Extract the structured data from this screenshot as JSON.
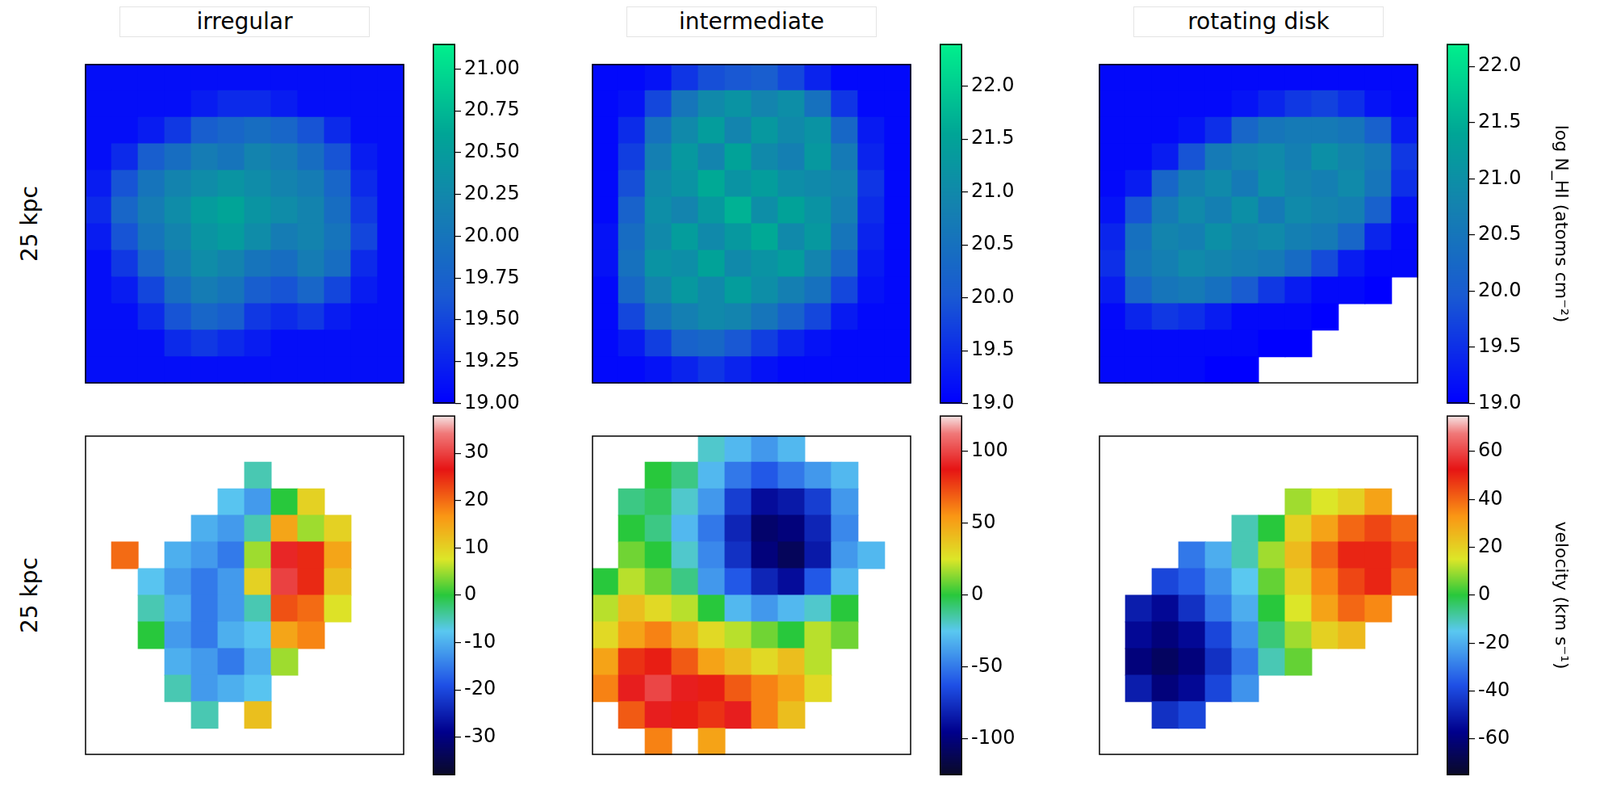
{
  "chart_data": [
    {
      "type": "heatmap",
      "title": "irregular",
      "ylabel": "25 kpc",
      "tick_labels": false,
      "cells": [
        [
          19.1,
          19.1,
          19.1,
          19.1,
          19.1,
          19.1,
          19.1,
          19.1,
          19.1,
          19.1,
          19.1,
          19.1
        ],
        [
          19.1,
          19.1,
          19.1,
          19.1,
          19.2,
          19.3,
          19.3,
          19.2,
          19.1,
          19.1,
          19.1,
          19.1
        ],
        [
          19.1,
          19.1,
          19.2,
          19.4,
          19.7,
          19.8,
          19.9,
          19.8,
          19.6,
          19.3,
          19.1,
          19.1
        ],
        [
          19.1,
          19.3,
          19.7,
          19.9,
          20.1,
          20.0,
          20.2,
          20.1,
          19.9,
          19.6,
          19.2,
          19.1
        ],
        [
          19.2,
          19.6,
          20.0,
          20.2,
          20.3,
          20.4,
          20.3,
          20.2,
          20.1,
          19.8,
          19.3,
          19.1
        ],
        [
          19.3,
          19.8,
          20.1,
          20.3,
          20.5,
          20.6,
          20.4,
          20.3,
          20.2,
          19.9,
          19.4,
          19.1
        ],
        [
          19.2,
          19.6,
          20.0,
          20.2,
          20.4,
          20.5,
          20.3,
          20.1,
          20.2,
          20.0,
          19.5,
          19.1
        ],
        [
          19.1,
          19.4,
          19.8,
          20.1,
          20.3,
          20.2,
          20.0,
          19.9,
          20.1,
          19.9,
          19.3,
          19.1
        ],
        [
          19.1,
          19.2,
          19.5,
          19.9,
          20.1,
          20.0,
          19.7,
          19.6,
          19.8,
          19.5,
          19.2,
          19.1
        ],
        [
          19.1,
          19.1,
          19.3,
          19.6,
          19.8,
          19.7,
          19.4,
          19.3,
          19.4,
          19.2,
          19.1,
          19.1
        ],
        [
          19.1,
          19.1,
          19.1,
          19.3,
          19.4,
          19.3,
          19.2,
          19.1,
          19.1,
          19.1,
          19.1,
          19.1
        ],
        [
          19.1,
          19.1,
          19.1,
          19.1,
          19.1,
          19.1,
          19.1,
          19.1,
          19.1,
          19.1,
          19.1,
          19.1
        ]
      ],
      "colorbar": {
        "lim": [
          19,
          21.15
        ],
        "ticks": [
          {
            "value": 19,
            "label": "19.00"
          },
          {
            "value": 19.25,
            "label": "19.25"
          },
          {
            "value": 19.5,
            "label": "19.50"
          },
          {
            "value": 19.75,
            "label": "19.75"
          },
          {
            "value": 20,
            "label": "20.00"
          },
          {
            "value": 20.25,
            "label": "20.25"
          },
          {
            "value": 20.5,
            "label": "20.50"
          },
          {
            "value": 20.75,
            "label": "20.75"
          },
          {
            "value": 21,
            "label": "21.00"
          }
        ]
      }
    },
    {
      "type": "heatmap",
      "title": "intermediate",
      "tick_labels": false,
      "cells": [
        [
          19.1,
          19.1,
          19.2,
          19.6,
          19.9,
          20.0,
          20.1,
          19.8,
          19.4,
          19.1,
          19.1,
          19.1
        ],
        [
          19.1,
          19.2,
          19.8,
          20.6,
          21.0,
          21.2,
          20.9,
          21.1,
          20.5,
          19.6,
          19.1,
          19.1
        ],
        [
          19.1,
          19.5,
          20.5,
          21.0,
          21.4,
          20.9,
          21.3,
          21.0,
          21.2,
          20.3,
          19.3,
          19.1
        ],
        [
          19.1,
          19.7,
          20.8,
          21.3,
          20.9,
          21.5,
          21.0,
          20.8,
          21.3,
          20.7,
          19.4,
          19.1
        ],
        [
          19.1,
          19.9,
          21.0,
          21.2,
          21.6,
          21.2,
          21.4,
          21.1,
          21.0,
          20.9,
          19.6,
          19.1
        ],
        [
          19.1,
          20.2,
          21.1,
          20.9,
          21.3,
          21.7,
          21.1,
          21.5,
          21.2,
          20.8,
          19.5,
          19.1
        ],
        [
          19.2,
          20.4,
          21.0,
          21.4,
          21.0,
          21.3,
          21.6,
          21.0,
          21.3,
          20.6,
          19.4,
          19.1
        ],
        [
          19.2,
          20.5,
          21.2,
          21.1,
          21.5,
          21.0,
          21.2,
          21.4,
          20.9,
          20.3,
          19.3,
          19.1
        ],
        [
          19.1,
          20.3,
          20.9,
          21.3,
          21.0,
          21.4,
          21.1,
          20.8,
          20.5,
          19.8,
          19.2,
          19.1
        ],
        [
          19.1,
          19.8,
          20.5,
          20.8,
          21.0,
          20.9,
          20.6,
          20.2,
          19.8,
          19.3,
          19.1,
          19.1
        ],
        [
          19.1,
          19.3,
          19.7,
          20.2,
          20.3,
          20.0,
          19.7,
          19.4,
          19.2,
          19.1,
          19.1,
          19.1
        ],
        [
          19.1,
          19.1,
          19.2,
          19.4,
          19.6,
          19.4,
          19.2,
          19.1,
          19.1,
          19.1,
          19.1,
          19.1
        ]
      ],
      "colorbar": {
        "lim": [
          19,
          22.4
        ],
        "ticks": [
          {
            "value": 19,
            "label": "19.0"
          },
          19.5,
          {
            "value": 20,
            "label": "20.0"
          },
          20.5,
          {
            "value": 21,
            "label": "21.0"
          },
          21.5,
          {
            "value": 22,
            "label": "22.0"
          }
        ]
      }
    },
    {
      "type": "heatmap",
      "title": "rotating disk",
      "tick_labels": false,
      "cells": [
        [
          19.1,
          19.1,
          19.1,
          19.1,
          19.1,
          19.1,
          19.1,
          19.1,
          19.1,
          19.1,
          19.1,
          19.1
        ],
        [
          19.1,
          19.1,
          19.1,
          19.1,
          19.1,
          19.2,
          19.4,
          19.6,
          19.7,
          19.5,
          19.2,
          19.1
        ],
        [
          19.1,
          19.1,
          19.1,
          19.2,
          19.5,
          20.2,
          20.5,
          20.6,
          20.6,
          20.5,
          20.1,
          19.3
        ],
        [
          19.1,
          19.1,
          19.3,
          19.9,
          20.6,
          20.8,
          20.9,
          20.7,
          21.0,
          20.8,
          20.6,
          19.6
        ],
        [
          19.1,
          19.3,
          20.2,
          20.7,
          20.9,
          20.6,
          21.0,
          20.8,
          20.7,
          20.9,
          20.5,
          19.5
        ],
        [
          19.2,
          19.9,
          20.6,
          20.9,
          20.7,
          21.0,
          20.6,
          20.9,
          20.8,
          20.7,
          20.1,
          19.2
        ],
        [
          19.4,
          20.4,
          20.8,
          20.7,
          21.0,
          20.8,
          20.9,
          20.7,
          20.6,
          20.2,
          19.4,
          19.1
        ],
        [
          19.5,
          20.5,
          20.7,
          20.9,
          20.8,
          20.7,
          20.6,
          20.3,
          19.8,
          19.3,
          19.1,
          19.1
        ],
        [
          19.3,
          20.2,
          20.5,
          20.6,
          20.4,
          20.0,
          19.6,
          19.3,
          19.1,
          19.1,
          19.0,
          null
        ],
        [
          19.1,
          19.4,
          19.6,
          19.5,
          19.3,
          19.1,
          19.1,
          19.1,
          19.0,
          null,
          null,
          null
        ],
        [
          19.1,
          19.1,
          19.1,
          19.1,
          19.1,
          19.1,
          19.0,
          19.0,
          null,
          null,
          null,
          null
        ],
        [
          19.1,
          19.1,
          19.1,
          19.1,
          19.0,
          19.0,
          null,
          null,
          null,
          null,
          null,
          null
        ]
      ],
      "colorbar": {
        "lim": [
          19,
          22.2
        ],
        "label": "log N_HI (atoms cm⁻²)",
        "ticks": [
          {
            "value": 19,
            "label": "19.0"
          },
          19.5,
          {
            "value": 20,
            "label": "20.0"
          },
          20.5,
          {
            "value": 21,
            "label": "21.0"
          },
          21.5,
          {
            "value": 22,
            "label": "22.0"
          }
        ]
      }
    },
    {
      "type": "heatmap",
      "ylabel": "25 kpc",
      "tick_labels": false,
      "cells": [
        [
          null,
          null,
          null,
          null,
          null,
          null,
          null,
          null,
          null,
          null,
          null,
          null
        ],
        [
          null,
          null,
          null,
          null,
          null,
          null,
          -5,
          null,
          null,
          null,
          null,
          null
        ],
        [
          null,
          null,
          null,
          null,
          null,
          -8,
          -12,
          0,
          10,
          null,
          null,
          null
        ],
        [
          null,
          null,
          null,
          null,
          -10,
          -12,
          -5,
          15,
          5,
          10,
          null,
          null
        ],
        [
          null,
          20,
          null,
          -10,
          -12,
          -15,
          5,
          28,
          25,
          15,
          null,
          null
        ],
        [
          null,
          null,
          -8,
          -12,
          -15,
          -12,
          10,
          30,
          25,
          12,
          null,
          null
        ],
        [
          null,
          null,
          -5,
          -10,
          -15,
          -12,
          -5,
          22,
          20,
          8,
          null,
          null
        ],
        [
          null,
          null,
          0,
          -12,
          -15,
          -10,
          -8,
          15,
          18,
          null,
          null,
          null
        ],
        [
          null,
          null,
          null,
          -10,
          -12,
          -15,
          -10,
          5,
          null,
          null,
          null,
          null
        ],
        [
          null,
          null,
          null,
          -5,
          -12,
          -10,
          -8,
          null,
          null,
          null,
          null,
          null
        ],
        [
          null,
          null,
          null,
          null,
          -5,
          null,
          12,
          null,
          null,
          null,
          null,
          null
        ],
        [
          null,
          null,
          null,
          null,
          null,
          null,
          null,
          null,
          null,
          null,
          null,
          null
        ]
      ],
      "colorbar": {
        "lim": [
          -38,
          38
        ],
        "ticks": [
          -30,
          -20,
          -10,
          0,
          10,
          20,
          30
        ]
      }
    },
    {
      "type": "heatmap",
      "tick_labels": false,
      "cells": [
        [
          null,
          null,
          null,
          null,
          -20,
          -30,
          -40,
          -30,
          null,
          null,
          null,
          null
        ],
        [
          null,
          null,
          0,
          -10,
          -30,
          -50,
          -60,
          -50,
          -40,
          -30,
          null,
          null
        ],
        [
          null,
          -10,
          -5,
          -20,
          -40,
          -70,
          -90,
          -85,
          -70,
          -40,
          null,
          null
        ],
        [
          null,
          0,
          -10,
          -30,
          -50,
          -80,
          -105,
          -100,
          -80,
          -45,
          null,
          null
        ],
        [
          null,
          10,
          0,
          -20,
          -45,
          -75,
          -100,
          -110,
          -85,
          -40,
          -30,
          null
        ],
        [
          0,
          20,
          10,
          -10,
          -40,
          -60,
          -80,
          -90,
          -60,
          -30,
          null,
          null
        ],
        [
          20,
          40,
          30,
          20,
          0,
          -30,
          -40,
          -30,
          -20,
          0,
          null,
          null
        ],
        [
          30,
          50,
          60,
          45,
          30,
          20,
          10,
          0,
          20,
          10,
          null,
          null
        ],
        [
          50,
          80,
          85,
          70,
          50,
          40,
          30,
          40,
          20,
          null,
          null,
          null
        ],
        [
          60,
          90,
          100,
          90,
          85,
          70,
          60,
          50,
          30,
          null,
          null,
          null
        ],
        [
          null,
          70,
          90,
          85,
          80,
          90,
          60,
          40,
          null,
          null,
          null,
          null
        ],
        [
          null,
          null,
          60,
          null,
          50,
          null,
          null,
          null,
          null,
          null,
          null,
          null
        ]
      ],
      "colorbar": {
        "lim": [
          -125,
          125
        ],
        "ticks": [
          -100,
          -50,
          0,
          50,
          100
        ]
      }
    },
    {
      "type": "heatmap",
      "tick_labels": false,
      "cells": [
        [
          null,
          null,
          null,
          null,
          null,
          null,
          null,
          null,
          null,
          null,
          null,
          null
        ],
        [
          null,
          null,
          null,
          null,
          null,
          null,
          null,
          null,
          null,
          null,
          null,
          null
        ],
        [
          null,
          null,
          null,
          null,
          null,
          null,
          null,
          10,
          15,
          20,
          30,
          null
        ],
        [
          null,
          null,
          null,
          null,
          null,
          -10,
          0,
          20,
          30,
          40,
          45,
          40
        ],
        [
          null,
          null,
          null,
          -30,
          -20,
          -10,
          10,
          25,
          40,
          50,
          50,
          45
        ],
        [
          null,
          null,
          -40,
          -35,
          -25,
          -15,
          5,
          20,
          35,
          45,
          50,
          40
        ],
        [
          null,
          -50,
          -55,
          -45,
          -30,
          -20,
          0,
          15,
          30,
          40,
          35,
          null
        ],
        [
          null,
          -55,
          -60,
          -55,
          -40,
          -25,
          -5,
          10,
          20,
          25,
          null,
          null
        ],
        [
          null,
          -60,
          -65,
          -60,
          -45,
          -30,
          -10,
          5,
          null,
          null,
          null,
          null
        ],
        [
          null,
          -50,
          -60,
          -55,
          -40,
          -25,
          null,
          null,
          null,
          null,
          null,
          null
        ],
        [
          null,
          null,
          -45,
          -40,
          null,
          null,
          null,
          null,
          null,
          null,
          null,
          null
        ],
        [
          null,
          null,
          null,
          null,
          null,
          null,
          null,
          null,
          null,
          null,
          null,
          null
        ]
      ],
      "colorbar": {
        "lim": [
          -75,
          75
        ],
        "label": "velocity (km s⁻¹)",
        "ticks": [
          -60,
          -40,
          -20,
          0,
          20,
          40,
          60
        ]
      }
    }
  ]
}
